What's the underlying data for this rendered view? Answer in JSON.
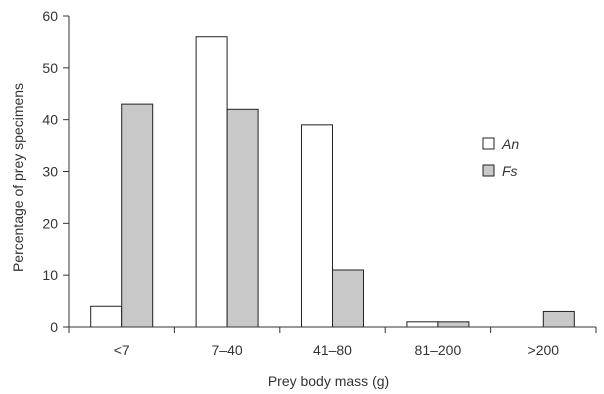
{
  "chart_data": {
    "type": "bar",
    "title": "",
    "xlabel": "Prey body mass (g)",
    "ylabel": "Percentage of prey specimens",
    "categories": [
      "<7",
      "7–40",
      "41–80",
      "81–200",
      ">200"
    ],
    "y_ticks": [
      "0",
      "10",
      "20",
      "30",
      "40",
      "50",
      "60"
    ],
    "ylim": [
      0,
      60
    ],
    "grid": false,
    "legend_position": "right",
    "series": [
      {
        "name": "An",
        "color": "#ffffff",
        "values": [
          4,
          56,
          39,
          1,
          0
        ]
      },
      {
        "name": "Fs",
        "color": "#c8c8c8",
        "values": [
          43,
          42,
          11,
          1,
          3
        ]
      }
    ]
  }
}
